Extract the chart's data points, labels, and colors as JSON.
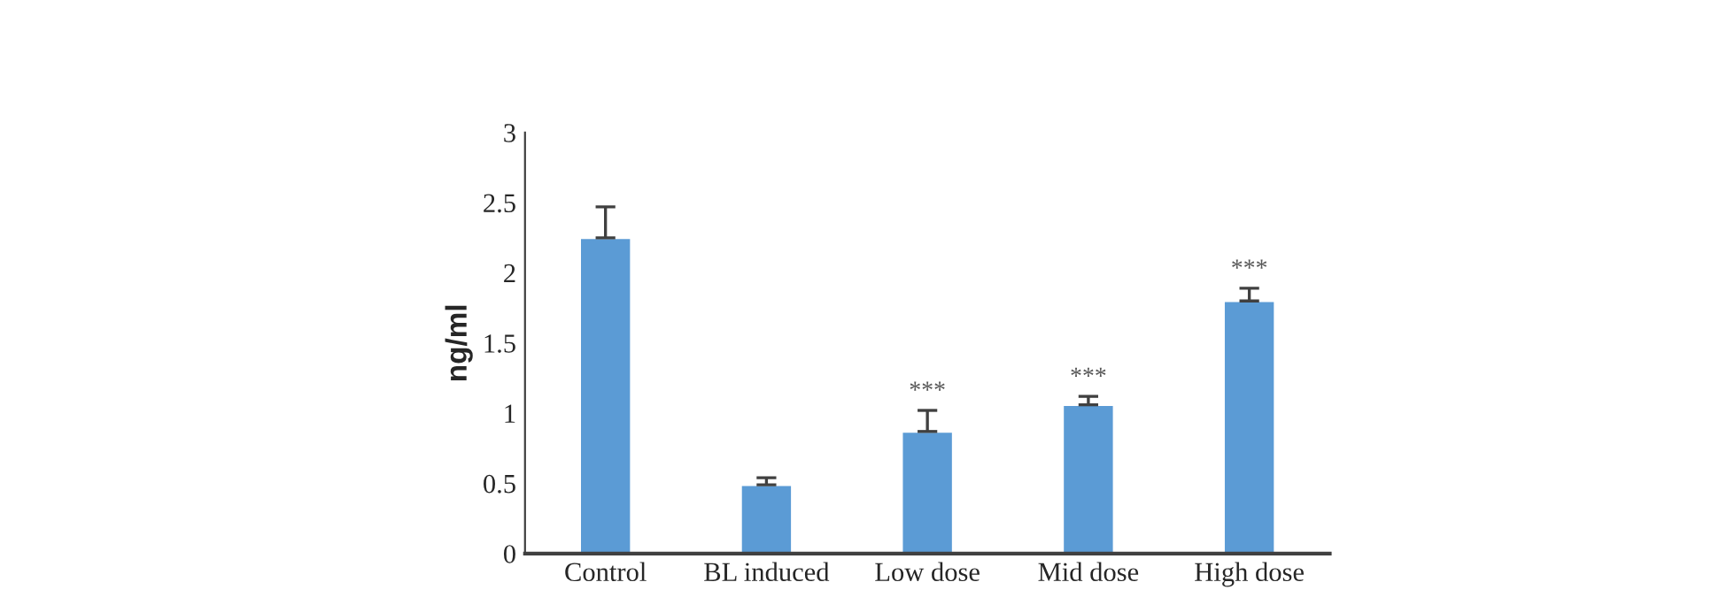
{
  "chart_data": {
    "type": "bar",
    "ylabel": "ng/ml",
    "categories": [
      "Control",
      "BL induced",
      "Low dose",
      "Mid dose",
      "High dose"
    ],
    "values": [
      2.25,
      0.49,
      0.87,
      1.06,
      1.8
    ],
    "errors": [
      [
        2.25,
        2.47
      ],
      [
        0.49,
        0.54
      ],
      [
        0.87,
        1.02
      ],
      [
        1.06,
        1.12
      ],
      [
        1.8,
        1.89
      ]
    ],
    "color": "#5b9bd5",
    "ylim": [
      0,
      3
    ],
    "yticks": [
      0,
      0.5,
      1,
      1.5,
      2,
      2.5,
      3
    ],
    "grid": false,
    "legend": false,
    "annotations": [
      {
        "text": "***",
        "x": "Low dose",
        "y": 1.02
      },
      {
        "text": "***",
        "x": "Mid dose",
        "y": 1.12
      },
      {
        "text": "***",
        "x": "High dose",
        "y": 1.89
      }
    ]
  }
}
